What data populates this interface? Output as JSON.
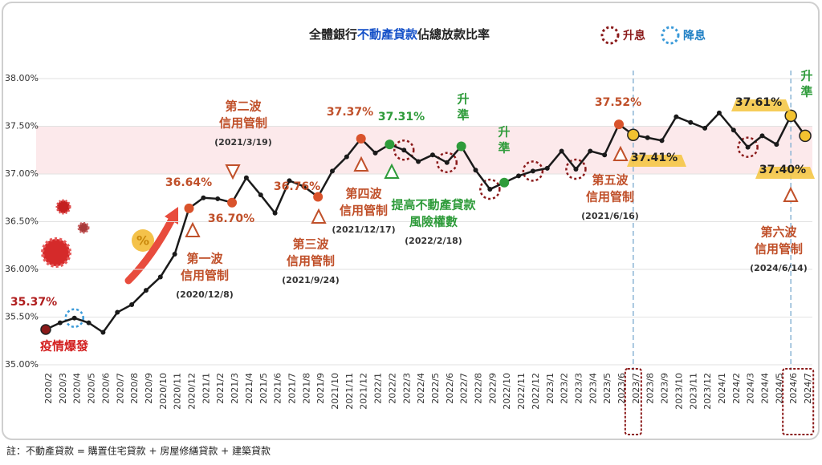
{
  "chart_data": {
    "type": "line",
    "title_parts": [
      "全體銀行",
      "不動產貸款",
      "佔總放款比率"
    ],
    "legend": [
      {
        "name": "升息",
        "color": "#8b1a1a"
      },
      {
        "name": "降息",
        "color": "#3a9ad9"
      }
    ],
    "categories": [
      "2020/2",
      "2020/3",
      "2020/4",
      "2020/5",
      "2020/6",
      "2020/7",
      "2020/8",
      "2020/9",
      "2020/10",
      "2020/11",
      "2020/12",
      "2021/1",
      "2021/2",
      "2021/3",
      "2021/4",
      "2021/5",
      "2021/6",
      "2021/7",
      "2021/8",
      "2021/9",
      "2021/10",
      "2021/11",
      "2021/12",
      "2022/1",
      "2022/2",
      "2022/3",
      "2022/4",
      "2022/5",
      "2022/6",
      "2022/7",
      "2022/8",
      "2022/9",
      "2022/10",
      "2022/11",
      "2022/12",
      "2023/1",
      "2023/2",
      "2023/3",
      "2023/4",
      "2023/5",
      "2023/6",
      "2023/7",
      "2023/8",
      "2023/9",
      "2023/10",
      "2023/11",
      "2023/12",
      "2024/1",
      "2024/2",
      "2024/3",
      "2024/4",
      "2024/5",
      "2024/6",
      "2024/7"
    ],
    "values": [
      35.37,
      35.44,
      35.49,
      35.44,
      35.34,
      35.55,
      35.63,
      35.78,
      35.92,
      36.16,
      36.64,
      36.75,
      36.74,
      36.7,
      36.96,
      36.78,
      36.59,
      36.93,
      36.87,
      36.76,
      37.03,
      37.18,
      37.37,
      37.22,
      37.31,
      37.25,
      37.13,
      37.2,
      37.12,
      37.29,
      37.04,
      36.84,
      36.91,
      36.98,
      37.03,
      37.06,
      37.24,
      37.05,
      37.24,
      37.2,
      37.52,
      37.41,
      37.38,
      37.35,
      37.6,
      37.54,
      37.48,
      37.64,
      37.46,
      37.28,
      37.4,
      37.31,
      37.61,
      37.4
    ],
    "value_labels": [
      "35.37%",
      null,
      null,
      null,
      null,
      null,
      null,
      null,
      null,
      null,
      "36.64%",
      null,
      null,
      "36.70%",
      null,
      null,
      null,
      null,
      null,
      "36.76%",
      null,
      null,
      "37.37%",
      null,
      "37.31%",
      null,
      null,
      null,
      null,
      null,
      null,
      null,
      null,
      null,
      null,
      null,
      null,
      null,
      null,
      null,
      "37.52%",
      "37.41%",
      null,
      null,
      null,
      null,
      null,
      null,
      null,
      null,
      null,
      null,
      "37.61%",
      "37.40%"
    ],
    "marker_colors": [
      "#8b1a1a",
      null,
      null,
      null,
      null,
      null,
      null,
      null,
      null,
      null,
      "#d9532c",
      null,
      null,
      "#d9532c",
      null,
      null,
      null,
      null,
      null,
      "#d9532c",
      null,
      null,
      "#d9532c",
      null,
      "#2e9b3a",
      null,
      null,
      null,
      null,
      "#2e9b3a",
      null,
      null,
      "#2e9b3a",
      null,
      null,
      null,
      null,
      null,
      null,
      null,
      "#d9532c",
      "#f2c230",
      null,
      null,
      null,
      null,
      null,
      null,
      null,
      null,
      null,
      null,
      "#f2c230",
      "#f2c230"
    ],
    "color": "#1a1a1a",
    "rate_hikes": [
      "2022/3",
      "2022/6",
      "2022/9",
      "2022/12",
      "2023/3",
      "2024/3"
    ],
    "rate_cuts": [
      "2020/4"
    ],
    "highlight_band": [
      37.0,
      37.5
    ],
    "ylim": [
      35.0,
      38.0
    ],
    "yticks": [
      {
        "value": 35.0,
        "label": "35.00%"
      },
      {
        "value": 35.5,
        "label": "35.50%"
      },
      {
        "value": 36.0,
        "label": "36.00%"
      },
      {
        "value": 36.5,
        "label": "36.50%"
      },
      {
        "value": 37.0,
        "label": "37.00%"
      },
      {
        "value": 37.5,
        "label": "37.50%"
      },
      {
        "value": 38.0,
        "label": "38.00%"
      }
    ],
    "annotations": [
      {
        "lines": [
          "疫情爆發"
        ]
      },
      {
        "lines": [
          "第一波",
          "信用管制"
        ],
        "date": "(2020/12/8)"
      },
      {
        "lines": [
          "第二波",
          "信用管制"
        ],
        "date": "(2021/3/19)"
      },
      {
        "lines": [
          "第三波",
          "信用管制"
        ],
        "date": "(2021/9/24)"
      },
      {
        "lines": [
          "第四波",
          "信用管制"
        ],
        "date": "(2021/12/17)"
      },
      {
        "lines": [
          "提高不動產貸款",
          "風險權數"
        ],
        "date": "(2022/2/18)"
      },
      {
        "lines": [
          "升",
          "準"
        ]
      },
      {
        "lines": [
          "升",
          "準"
        ]
      },
      {
        "lines": [
          "第五波",
          "信用管制"
        ],
        "date": "(2021/6/16)"
      },
      {
        "lines": [
          "升",
          "準"
        ]
      },
      {
        "lines": [
          "第六波",
          "信用管制"
        ],
        "date": "(2024/6/14)"
      }
    ]
  },
  "footnote": "註：不動產貸款 = 購置住宅貸款 + 房屋修繕貸款 + 建築貸款"
}
